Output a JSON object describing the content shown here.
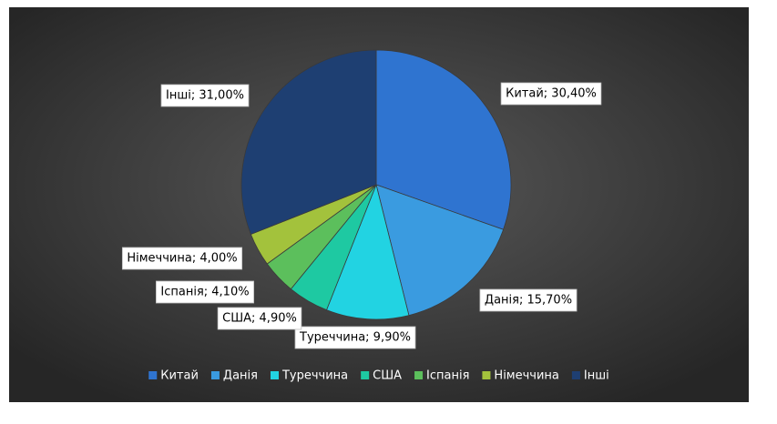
{
  "chart_data": {
    "type": "pie",
    "categories": [
      "Китай",
      "Данія",
      "Туреччина",
      "США",
      "Іспанія",
      "Німеччина",
      "Інші"
    ],
    "values": [
      30.4,
      15.7,
      9.9,
      4.9,
      4.1,
      4.0,
      31.0
    ],
    "value_labels": [
      "Китай; 30,40%",
      "Данія; 15,70%",
      "Туреччина; 9,90%",
      "США; 4,90%",
      "Іспанія; 4,10%",
      "Німеччина; 4,00%",
      "Інші; 31,00%"
    ],
    "colors": [
      "#2f74d0",
      "#3a9be0",
      "#22d3e2",
      "#1ec9a2",
      "#5cbf5c",
      "#a3c23c",
      "#1e3f72"
    ],
    "legend": "bottom"
  }
}
